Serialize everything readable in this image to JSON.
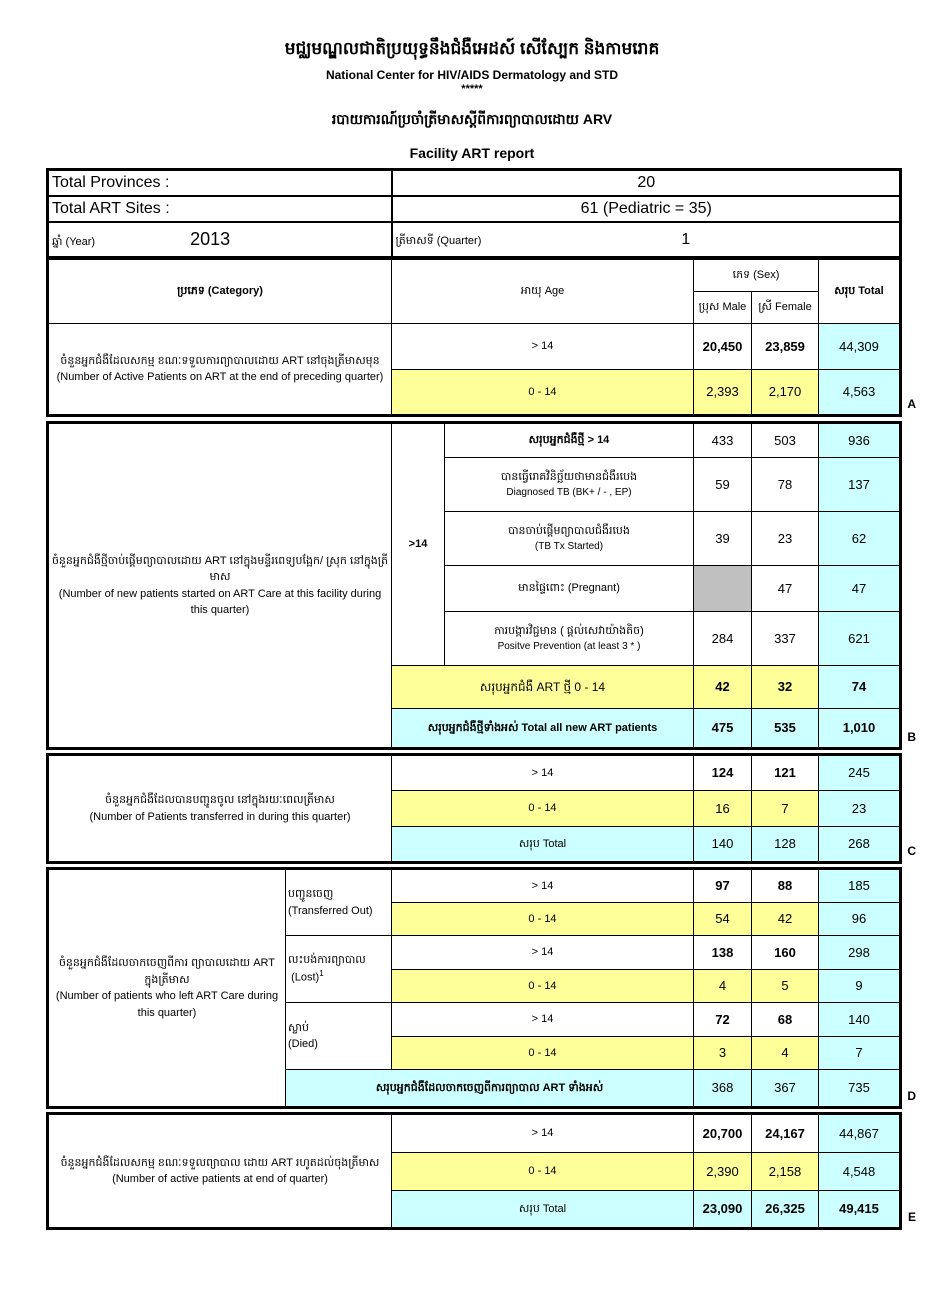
{
  "header": {
    "title_km": "មជ្ឈមណ្ឌលជាតិប្រយុទ្ធនឹងជំងឺអេដស៍ សើស្បែក និងកាមរោគ",
    "title_en": "National Center for HIV/AIDS Dermatology and STD",
    "stars": "*****",
    "subtitle_km": "របាយការណ៍ប្រចាំត្រីមាសស្តីពីការព្យាបាលដោយ ARV",
    "report_title": "Facility ART report"
  },
  "summary": {
    "provinces_label": "Total Provinces :",
    "provinces_value": "20",
    "sites_label": "Total ART Sites :",
    "sites_value": "61 (Pediatric = 35)",
    "year_label": "ឆ្នាំ (Year)",
    "year_value": "2013",
    "quarter_label": "ត្រីមាសទី (Quarter)",
    "quarter_value": "1"
  },
  "colors": {
    "yellow": "#ffff99",
    "cyan": "#ccffff",
    "grey": "#c0c0c0"
  },
  "columns": {
    "category": "ប្រភេទ (Category)",
    "age": "អាយុ Age",
    "sex": "ភេទ (Sex)",
    "male": "ប្រុស Male",
    "female": "ស្រី Female",
    "total": "សរុប  Total"
  },
  "ages": {
    "adult": "> 14",
    "child": "0 - 14",
    "adult_b": ">14"
  },
  "total_label": "សរុប   Total",
  "A": {
    "letter": "A",
    "label_km": "ចំនួនអ្នកជំងឺដែលសកម្ម ខណៈទទួលការព្យាបាលដោយ ART នៅចុងត្រីមាសមុន",
    "label_en": "(Number of Active Patients on ART at the end of preceding quarter)",
    "adult": [
      "20,450",
      "23,859",
      "44,309"
    ],
    "child": [
      "2,393",
      "2,170",
      "4,563"
    ]
  },
  "B": {
    "letter": "B",
    "label_km": "ចំនួនអ្នកជំងឺថ្មីចាប់ផ្តើមព្យាបាលដោយ ART នៅក្នុងមន្ទីរពេទ្យបង្អែក/ ស្រុក នៅក្នុងត្រីមាស",
    "label_en": "(Number of new patients started on ART Care at this facility during this quarter)",
    "rows": [
      {
        "label_km": "សរុបអ្នកជំងឺថ្មី  > 14",
        "label_en": "",
        "values": [
          "433",
          "503",
          "936"
        ]
      },
      {
        "label_km": "បានធ្វើរោគវិនិច្ឆ័យថាមានជំងឺរបេង",
        "label_en": "Diagnosed  TB  (BK+  /  - ,  EP)",
        "values": [
          "59",
          "78",
          "137"
        ]
      },
      {
        "label_km": "បានចាប់ផ្តើមព្យាបាលជំងឺរបេង",
        "label_en": "(TB  Tx  Started)",
        "values": [
          "39",
          "23",
          "62"
        ]
      },
      {
        "label_km": "មានផ្ទៃពោះ (Pregnant)",
        "label_en": "",
        "values": [
          "",
          "47",
          "47"
        ]
      },
      {
        "label_km": "ការបង្ការវិជ្ជមាន ( ផ្តល់សេវាយ៉ាងតិច)",
        "label_en": "Positve  Prevention  (at  least  3  *  )",
        "values": [
          "284",
          "337",
          "621"
        ]
      }
    ],
    "child_label": "សរុបអ្នកជំងឺ ART ថ្មី 0 - 14",
    "child": [
      "42",
      "32",
      "74"
    ],
    "total_label": "សរុបអ្នកជំងឺថ្មីទាំងអស់ Total all new ART patients",
    "total": [
      "475",
      "535",
      "1,010"
    ]
  },
  "C": {
    "letter": "C",
    "label_km": "ចំនួនអ្នកជំងឺដែលបានបញ្ជូនចូល នៅក្នុងរយៈពេលត្រីមាស",
    "label_en": "(Number of Patients transferred in during this quarter)",
    "adult": [
      "124",
      "121",
      "245"
    ],
    "child": [
      "16",
      "7",
      "23"
    ],
    "total": [
      "140",
      "128",
      "268"
    ]
  },
  "D": {
    "letter": "D",
    "label_km": "ចំនួនអ្នកជំងឺដែលចាកចេញពីការ ព្យាបាលដោយ ART ក្នុងត្រីមាស",
    "label_en": "(Number of patients who left ART Care during this quarter)",
    "groups": [
      {
        "label_km": "បញ្ជូនចេញ",
        "label_en": "(Transferred Out)",
        "sup": "",
        "adult": [
          "97",
          "88",
          "185"
        ],
        "child": [
          "54",
          "42",
          "96"
        ]
      },
      {
        "label_km": "លះបង់ការព្យាបាល",
        "label_en": "(Lost)",
        "sup": "1",
        "adult": [
          "138",
          "160",
          "298"
        ],
        "child": [
          "4",
          "5",
          "9"
        ]
      },
      {
        "label_km": "ស្លាប់",
        "label_en": "(Died)",
        "sup": "",
        "adult": [
          "72",
          "68",
          "140"
        ],
        "child": [
          "3",
          "4",
          "7"
        ]
      }
    ],
    "total_label": "សរុបអ្នកជំងឺដែលចាកចេញពីការព្យាបាល ART ទាំងអស់",
    "total": [
      "368",
      "367",
      "735"
    ]
  },
  "E": {
    "letter": "E",
    "label_km": "ចំនួនអ្នកជំងឺដែលសកម្ម ខណៈទទួលព្យាបាល ដោយ ART រហូតដល់ចុងត្រីមាស",
    "label_en": "(Number of active patients at end of quarter)",
    "adult": [
      "20,700",
      "24,167",
      "44,867"
    ],
    "child": [
      "2,390",
      "2,158",
      "4,548"
    ],
    "total": [
      "23,090",
      "26,325",
      "49,415"
    ]
  }
}
